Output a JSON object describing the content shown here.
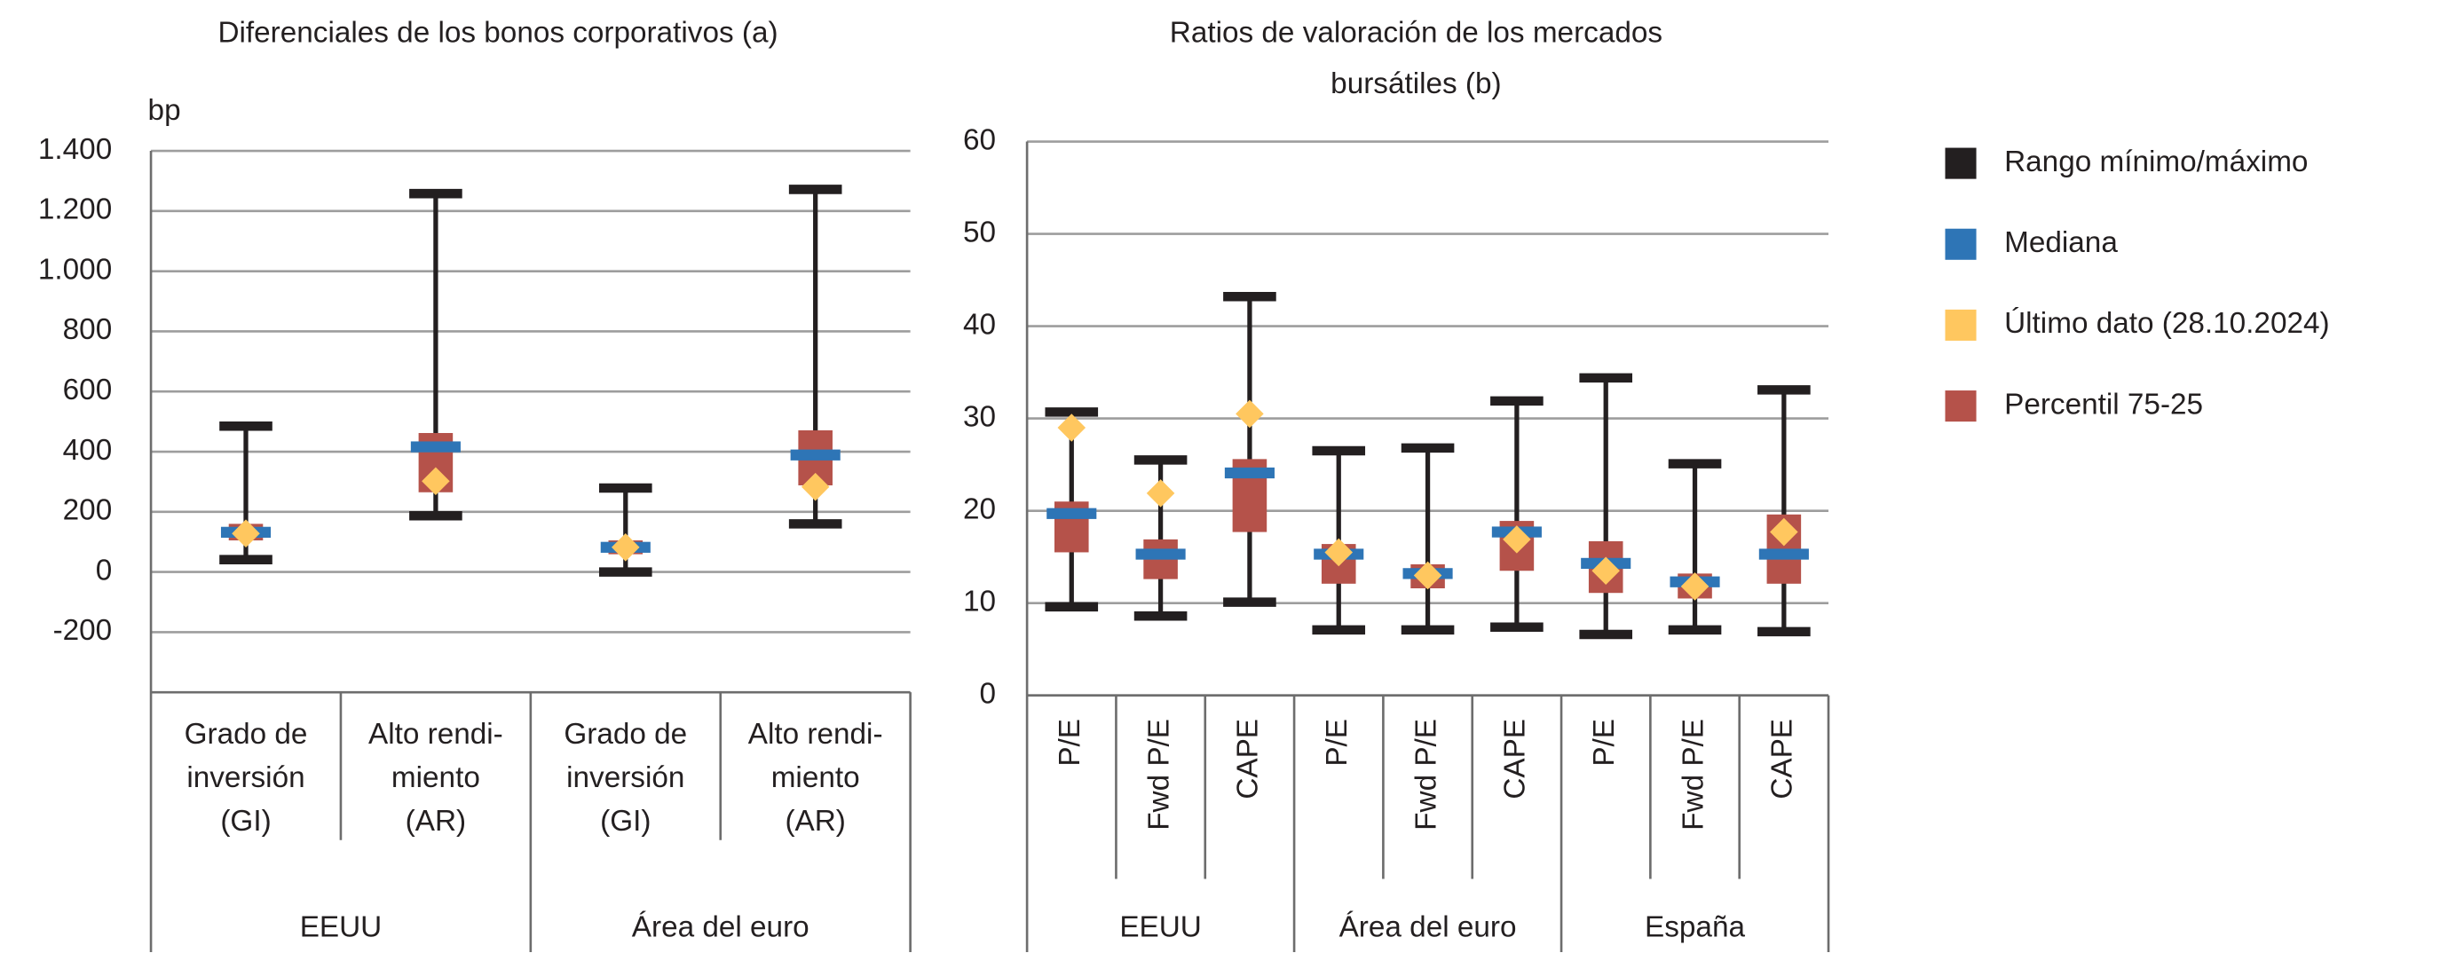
{
  "chart_data": [
    {
      "type": "range",
      "title": "Diferenciales de los bonos corporativos (a)",
      "ylabel": "bp",
      "groups": [
        {
          "name": "EEUU",
          "categories": [
            [
              "Grado de",
              "inversión",
              "(GI)"
            ],
            [
              "Alto rendi-",
              "miento",
              "(AR)"
            ]
          ]
        },
        {
          "name": "Área del euro",
          "categories": [
            [
              "Grado de",
              "inversión",
              "(GI)"
            ],
            [
              "Alto rendi-",
              "miento",
              "(AR)"
            ]
          ]
        }
      ],
      "ylim": [
        -400,
        1400
      ],
      "yticks": [
        -200,
        0,
        200,
        400,
        600,
        800,
        {
          "value": 1000,
          "label": "1.000"
        },
        {
          "value": 1200,
          "label": "1.200"
        },
        {
          "value": 1400,
          "label": "1.400"
        }
      ],
      "grid": true,
      "series": [
        {
          "color": "#231f20",
          "marker": "whisker",
          "low": [
            41,
            187,
            0,
            160
          ],
          "high": [
            485,
            1258,
            279,
            1272
          ]
        },
        {
          "color": "#2e75b6",
          "marker": "bar",
          "values": [
            132,
            416,
            82,
            389
          ]
        },
        {
          "color": "#ffc75f",
          "marker": "diamond",
          "values": [
            128,
            302,
            82,
            283
          ]
        },
        {
          "color": "#b5524a",
          "marker": "box",
          "low": [
            105,
            265,
            59,
            288
          ],
          "high": [
            160,
            462,
            105,
            471
          ]
        }
      ]
    },
    {
      "type": "range",
      "title": [
        "Ratios de valoración de los mercados",
        "bursátiles (b)"
      ],
      "groups": [
        {
          "name": "EEUU",
          "categories": [
            "P/E",
            "Fwd P/E",
            "CAPE"
          ]
        },
        {
          "name": "Área del euro",
          "categories": [
            "P/E",
            "Fwd P/E",
            "CAPE"
          ]
        },
        {
          "name": "España",
          "categories": [
            "P/E",
            "Fwd P/E",
            "CAPE"
          ]
        }
      ],
      "ylim": [
        0,
        60
      ],
      "yticks": [
        0,
        10,
        20,
        30,
        40,
        50,
        60
      ],
      "grid": true,
      "series": [
        {
          "name": "Rango mínimo/máximo",
          "color": "#231f20",
          "marker": "whisker",
          "low": [
            9.6,
            8.6,
            10.1,
            7.1,
            7.1,
            7.4,
            6.6,
            7.1,
            6.9
          ],
          "high": [
            30.7,
            25.5,
            43.2,
            26.5,
            26.8,
            31.9,
            34.4,
            25.1,
            33.1
          ]
        },
        {
          "name": "Mediana",
          "color": "#2e75b6",
          "marker": "bar",
          "values": [
            19.7,
            15.3,
            24.1,
            15.3,
            13.2,
            17.7,
            14.3,
            12.3,
            15.3
          ]
        },
        {
          "name": "Último dato (28.10.2024)",
          "color": "#ffc75f",
          "marker": "diamond",
          "values": [
            29,
            21.9,
            30.5,
            15.5,
            13,
            16.9,
            13.5,
            11.8,
            17.7
          ]
        },
        {
          "name": "Percentil 75-25",
          "color": "#b5524a",
          "marker": "box",
          "low": [
            15.5,
            12.6,
            17.7,
            12.1,
            11.6,
            13.5,
            11.1,
            10.5,
            12.1
          ],
          "high": [
            21,
            16.9,
            25.6,
            16.4,
            14.2,
            18.9,
            16.7,
            13.2,
            19.6
          ]
        }
      ]
    }
  ]
}
